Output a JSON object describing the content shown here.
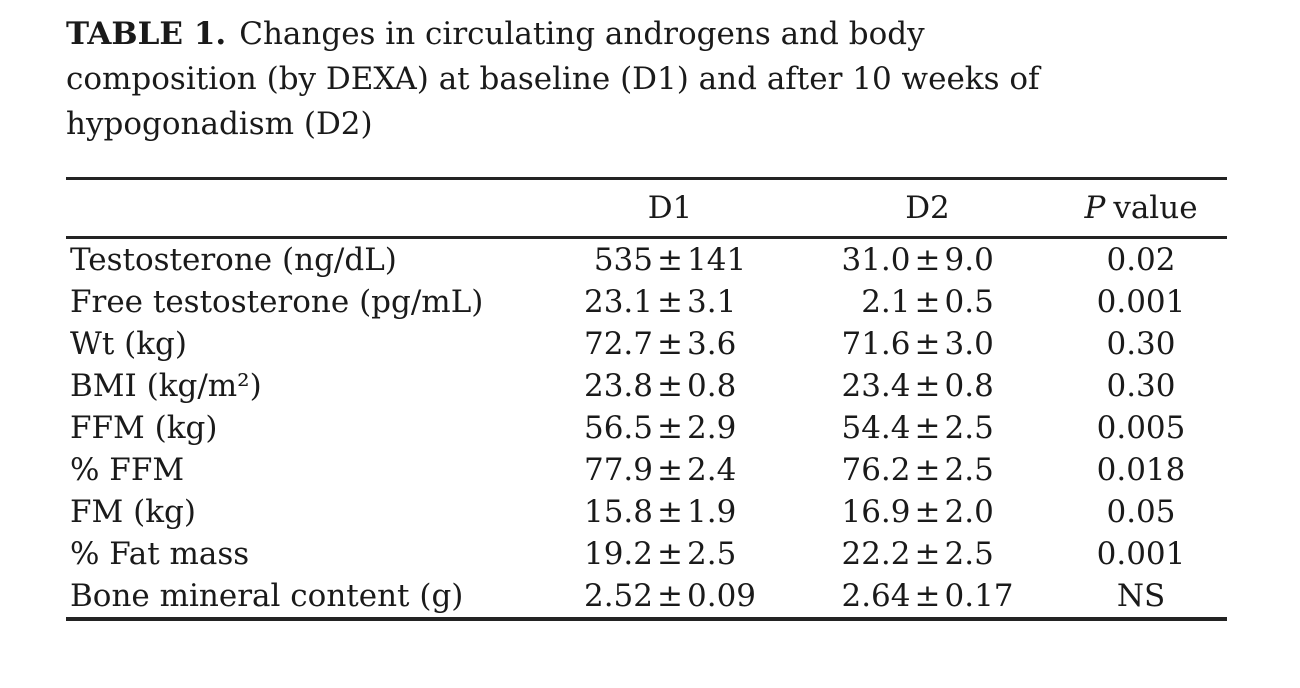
{
  "caption": {
    "label": "TABLE 1.",
    "line1": "Changes in circulating androgens and body",
    "line2": "composition (by DEXA) at baseline (D1) and after 10 weeks of",
    "line3": "hypogonadism (D2)"
  },
  "table": {
    "pm": "±",
    "headers": {
      "metric": "",
      "d1": "D1",
      "d2": "D2",
      "p_italic": "P",
      "p_rest": "value"
    },
    "rows": [
      {
        "label": "Testosterone (ng/dL)",
        "d1m": "535",
        "d1e": "141",
        "d2m": "31.0",
        "d2e": "9.0",
        "p": "0.02"
      },
      {
        "label": "Free testosterone (pg/mL)",
        "d1m": "23.1",
        "d1e": "3.1",
        "d2m": "2.1",
        "d2e": "0.5",
        "p": "0.001"
      },
      {
        "label": "Wt (kg)",
        "d1m": "72.7",
        "d1e": "3.6",
        "d2m": "71.6",
        "d2e": "3.0",
        "p": "0.30"
      },
      {
        "label": "BMI (kg/m²)",
        "d1m": "23.8",
        "d1e": "0.8",
        "d2m": "23.4",
        "d2e": "0.8",
        "p": "0.30"
      },
      {
        "label": "FFM (kg)",
        "d1m": "56.5",
        "d1e": "2.9",
        "d2m": "54.4",
        "d2e": "2.5",
        "p": "0.005"
      },
      {
        "label": "% FFM",
        "d1m": "77.9",
        "d1e": "2.4",
        "d2m": "76.2",
        "d2e": "2.5",
        "p": "0.018"
      },
      {
        "label": "FM (kg)",
        "d1m": "15.8",
        "d1e": "1.9",
        "d2m": "16.9",
        "d2e": "2.0",
        "p": "0.05"
      },
      {
        "label": "% Fat mass",
        "d1m": "19.2",
        "d1e": "2.5",
        "d2m": "22.2",
        "d2e": "2.5",
        "p": "0.001"
      },
      {
        "label": "Bone mineral content (g)",
        "d1m": "2.52",
        "d1e": "0.09",
        "d2m": "2.64",
        "d2e": "0.17",
        "p": "NS"
      }
    ]
  },
  "colors": {
    "text": "#1a1a1a",
    "rule": "#232323",
    "background": "#ffffff"
  }
}
